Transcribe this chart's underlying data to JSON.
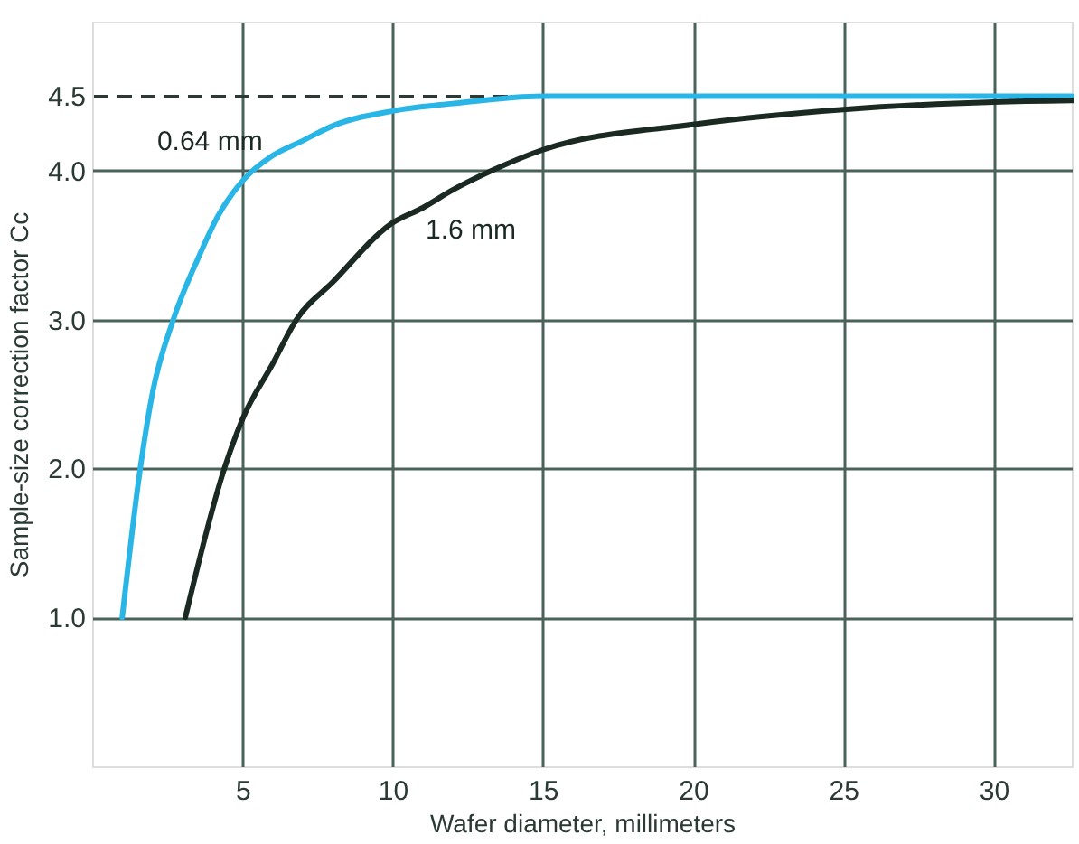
{
  "chart_data": {
    "type": "line",
    "xlabel": "Wafer diameter, millimeters",
    "ylabel": "Sample-size correction factor Cc",
    "xlim": [
      0,
      32.6
    ],
    "xticks": [
      5,
      10,
      15,
      20,
      25,
      30
    ],
    "ylim": [
      0,
      5
    ],
    "yticks": [
      {
        "value": 1,
        "label": "1.0"
      },
      {
        "value": 2,
        "label": "2.0"
      },
      {
        "value": 3,
        "label": "3.0"
      },
      {
        "value": 4,
        "label": "4.0"
      },
      4.5
    ],
    "grid": true,
    "marker": "none",
    "line_style": "solid",
    "ref_lines": [
      {
        "axis": "y",
        "value": 4.5,
        "label": null,
        "color": "#2b3b33",
        "line_style": "dashed"
      }
    ],
    "series": [
      {
        "name": "0.64 mm",
        "color": "#29b6e6",
        "x": [
          1.0,
          1.6,
          2.0,
          2.7,
          3.5,
          4.2,
          5,
          6,
          7,
          8,
          10,
          12,
          15,
          20,
          32.6
        ],
        "values": [
          1.0,
          2.0,
          2.5,
          3.0,
          3.4,
          3.7,
          3.93,
          4.1,
          4.2,
          4.3,
          4.4,
          4.45,
          4.5,
          4.5,
          4.5
        ]
      },
      {
        "name": "1.6 mm",
        "color": "#1a2a22",
        "x": [
          3.1,
          4.4,
          5,
          6,
          6.8,
          8,
          10,
          11,
          12,
          13.3,
          15,
          20,
          25,
          30,
          32.6
        ],
        "values": [
          1.0,
          2.0,
          2.33,
          2.7,
          3.0,
          3.25,
          3.65,
          3.75,
          3.87,
          4.0,
          4.14,
          4.31,
          4.41,
          4.46,
          4.47
        ]
      }
    ]
  }
}
